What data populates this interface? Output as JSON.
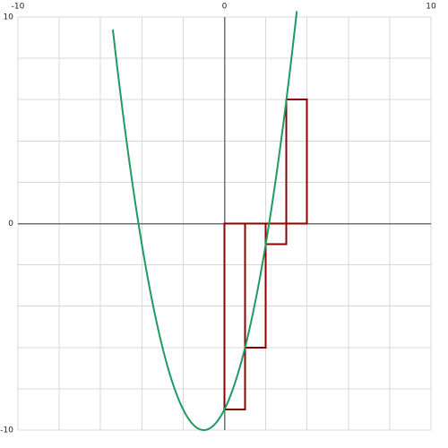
{
  "chart_data": {
    "type": "line",
    "xlim": [
      -10,
      10
    ],
    "ylim": [
      -10,
      10
    ],
    "grid": true,
    "x_ticks": [
      -10,
      -8,
      -6,
      -4,
      -2,
      0,
      2,
      4,
      6,
      8,
      10
    ],
    "y_ticks": [
      -10,
      -8,
      -6,
      -4,
      -2,
      0,
      2,
      4,
      6,
      8,
      10
    ],
    "x_tick_labels": [
      {
        "value": -10,
        "label": "-10"
      },
      {
        "value": 0,
        "label": "0"
      },
      {
        "value": 10,
        "label": "10"
      }
    ],
    "y_tick_labels": [
      {
        "value": 10,
        "label": "10"
      },
      {
        "value": 0,
        "label": "0"
      },
      {
        "value": -10,
        "label": "-10"
      }
    ],
    "curve": {
      "type": "parabola",
      "function": "y = x^2 + 2x - 9",
      "vertex": [
        -1,
        -10
      ],
      "color": "#1f9a60",
      "x_range": [
        -5.4,
        3.5
      ]
    },
    "bars": {
      "type": "bar",
      "color": "#8b0000",
      "items": [
        {
          "x_start": 0,
          "x_end": 1,
          "value": -9
        },
        {
          "x_start": 1,
          "x_end": 2,
          "value": -6
        },
        {
          "x_start": 2,
          "x_end": 3,
          "value": -1
        },
        {
          "x_start": 3,
          "x_end": 4,
          "value": 6
        }
      ]
    }
  }
}
